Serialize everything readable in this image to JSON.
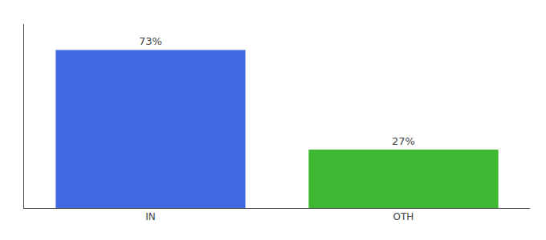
{
  "chart_data": {
    "type": "bar",
    "categories": [
      "IN",
      "OTH"
    ],
    "values": [
      73,
      27
    ],
    "value_labels": [
      "73%",
      "27%"
    ],
    "colors": [
      "#4169e1",
      "#3cb832"
    ],
    "ylim": [
      0,
      85
    ],
    "data_labels": true,
    "tick_labels": "x",
    "grid": false
  }
}
